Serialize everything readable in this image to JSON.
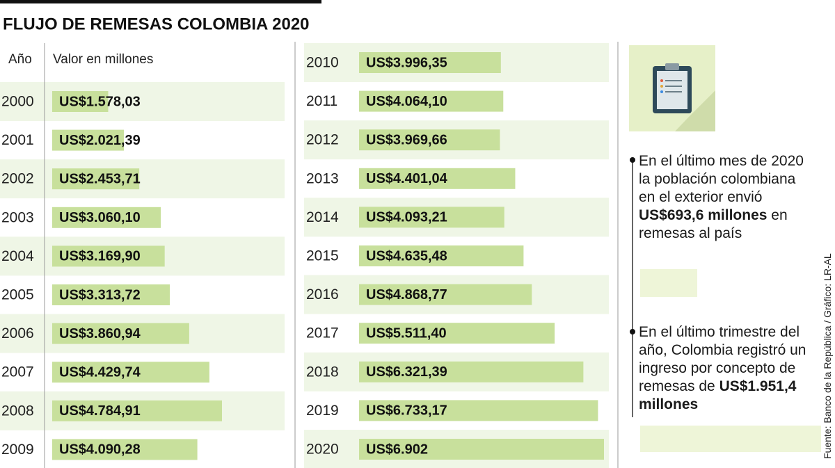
{
  "chart_data": {
    "type": "bar",
    "orientation": "horizontal",
    "title": "FLUJO DE REMESAS COLOMBIA 2020",
    "column_headers": [
      "Año",
      "Valor en millones"
    ],
    "categories": [
      "2000",
      "2001",
      "2002",
      "2003",
      "2004",
      "2005",
      "2006",
      "2007",
      "2008",
      "2009",
      "2010",
      "2011",
      "2012",
      "2013",
      "2014",
      "2015",
      "2016",
      "2017",
      "2018",
      "2019",
      "2020"
    ],
    "values": [
      1578.03,
      2021.39,
      2453.71,
      3060.1,
      3169.9,
      3313.72,
      3860.94,
      4429.74,
      4784.91,
      4090.28,
      3996.35,
      4064.1,
      3969.66,
      4401.04,
      4093.21,
      4635.48,
      4868.77,
      5511.4,
      6321.39,
      6733.17,
      6902
    ],
    "value_labels": [
      "US$1.578,03",
      "US$2.021,39",
      "US$2.453,71",
      "US$3.060,10",
      "US$3.169,90",
      "US$3.313,72",
      "US$3.860,94",
      "US$4.429,74",
      "US$4.784,91",
      "US$4.090,28",
      "US$3.996,35",
      "US$4.064,10",
      "US$3.969,66",
      "US$4.401,04",
      "US$4.093,21",
      "US$4.635,48",
      "US$4.868,77",
      "US$5.511,40",
      "US$6.321,39",
      "US$6.733,17",
      "US$6.902"
    ],
    "color": "#c8e09c",
    "notes": [
      {
        "text": "En el último mes de 2020 la población colombiana en el exterior envió ",
        "bold": "US$693,6 millones",
        "after": " en remesas al país"
      },
      {
        "text": "En el último trimestre del año, Colombia registró un ingreso por concepto de remesas de ",
        "bold": "US$1.951,4 millones"
      }
    ],
    "source": "Fuente: Banco de la República / Gráfico: LR-AL"
  }
}
